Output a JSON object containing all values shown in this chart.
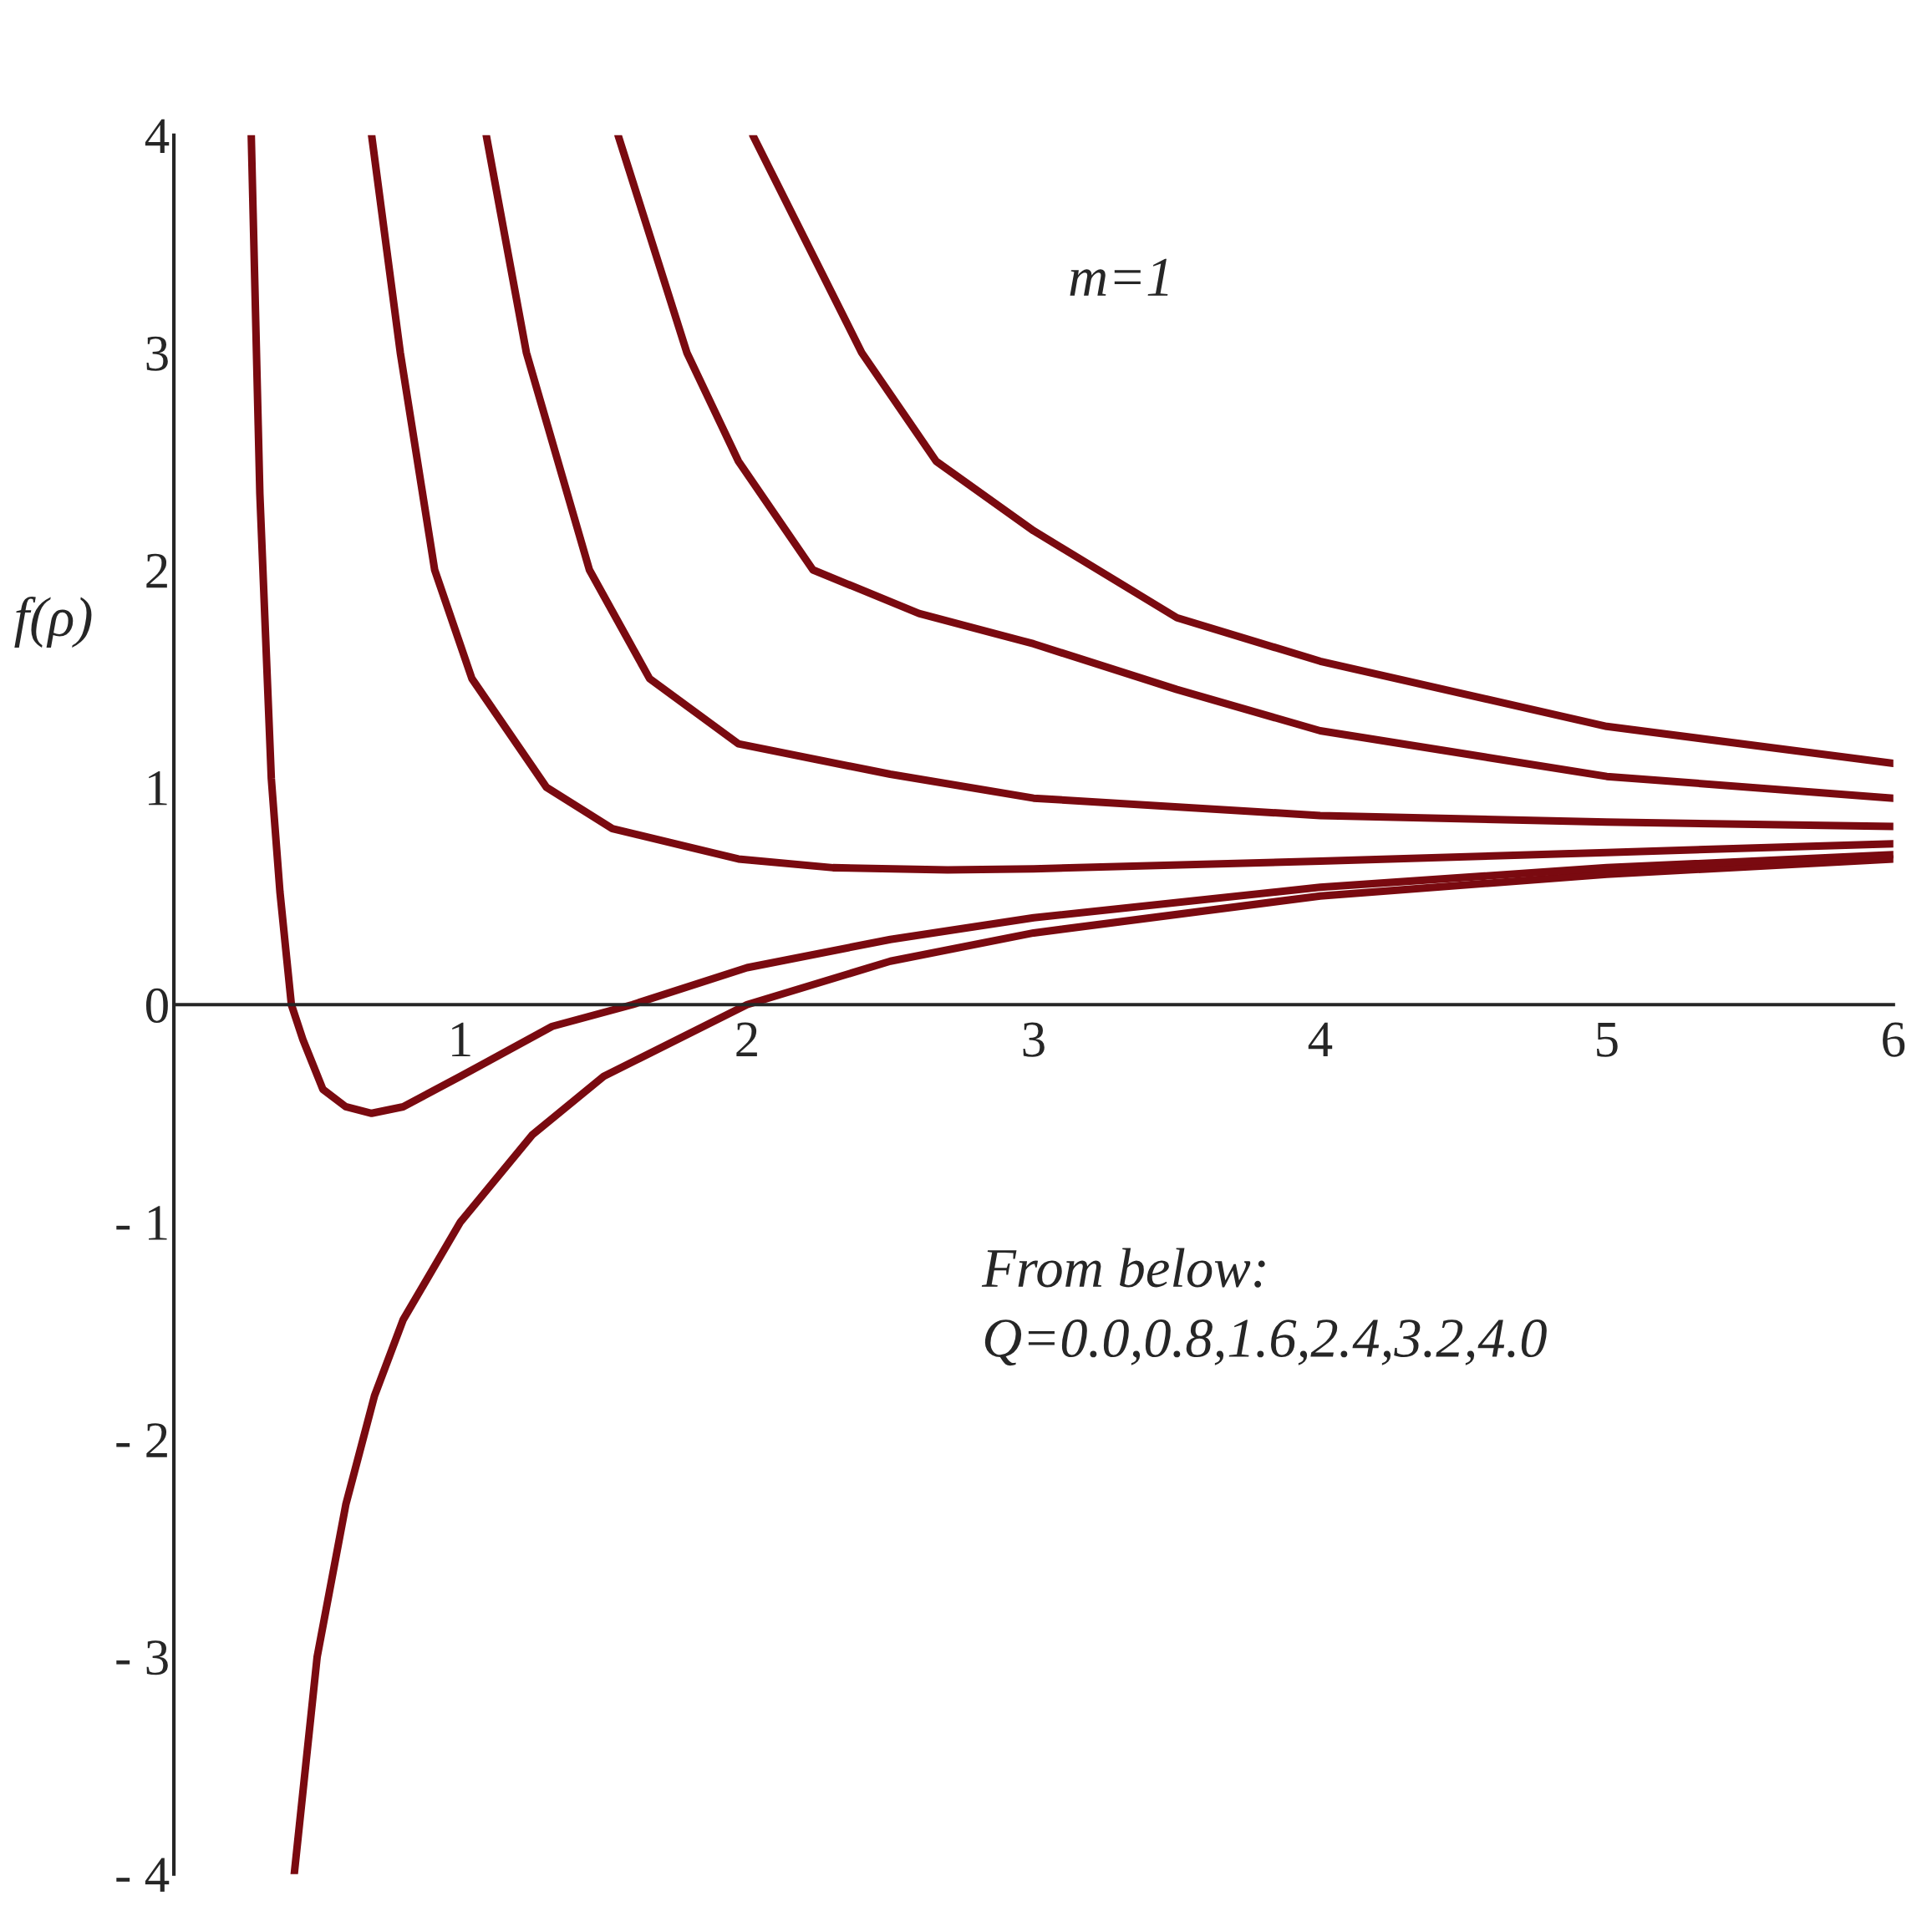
{
  "chart_data": {
    "type": "line",
    "ylabel": "f(ρ)",
    "xlim": [
      0,
      6
    ],
    "ylim": [
      -4,
      4
    ],
    "xticks": [
      1,
      2,
      3,
      4,
      5,
      6
    ],
    "yticks": [
      -4,
      -3,
      -2,
      -1,
      0,
      1,
      2,
      3,
      4
    ],
    "grid": false,
    "legend": false,
    "marker": "none",
    "line_style": "solid",
    "annotations": [
      "m=1",
      "From below:\nQ=0.0,0.8,1.6,2.4,3.2,4.0"
    ],
    "series": [
      {
        "color": "#7a0a10",
        "x": [
          0.42,
          0.5,
          0.6,
          0.7,
          0.8,
          1.0,
          1.25,
          1.5,
          2,
          2.5,
          3,
          4,
          5,
          6
        ],
        "values": [
          -4,
          -3.0,
          -2.3,
          -1.8,
          -1.45,
          -1.0,
          -0.6,
          -0.33,
          0,
          0.2,
          0.33,
          0.5,
          0.6,
          0.67
        ]
      },
      {
        "color": "#7a0a10",
        "x": [
          0.27,
          0.3,
          0.34,
          0.37,
          0.41,
          0.45,
          0.52,
          0.6,
          0.69,
          0.8,
          1,
          1.32,
          1.6,
          2,
          2.5,
          3,
          4,
          5,
          6
        ],
        "values": [
          4,
          2.35,
          1.04,
          0.52,
          0,
          -0.16,
          -0.39,
          -0.47,
          -0.5,
          -0.47,
          -0.33,
          -0.1,
          0,
          0.17,
          0.3,
          0.4,
          0.54,
          0.63,
          0.69
        ]
      },
      {
        "color": "#7a0a10",
        "x": [
          0.69,
          0.79,
          0.91,
          1.04,
          1.3,
          1.53,
          1.97,
          2.3,
          2.7,
          3,
          4,
          5,
          6
        ],
        "values": [
          4,
          3,
          2,
          1.5,
          1,
          0.81,
          0.67,
          0.63,
          0.62,
          0.625,
          0.66,
          0.7,
          0.74
        ]
      },
      {
        "color": "#7a0a10",
        "x": [
          1.09,
          1.23,
          1.45,
          1.66,
          1.97,
          2.5,
          3,
          4,
          5,
          6
        ],
        "values": [
          4,
          3,
          2,
          1.5,
          1.2,
          1.06,
          0.95,
          0.87,
          0.84,
          0.82
        ]
      },
      {
        "color": "#7a0a10",
        "x": [
          1.55,
          1.79,
          1.97,
          2.23,
          2.6,
          3,
          3.5,
          4,
          5,
          6
        ],
        "values": [
          4,
          3,
          2.5,
          2,
          1.8,
          1.66,
          1.45,
          1.26,
          1.05,
          0.95
        ]
      },
      {
        "color": "#7a0a10",
        "x": [
          2.02,
          2.4,
          2.66,
          3,
          3.5,
          4,
          5,
          6
        ],
        "values": [
          4,
          3,
          2.5,
          2.18,
          1.78,
          1.58,
          1.28,
          1.11
        ]
      }
    ]
  }
}
